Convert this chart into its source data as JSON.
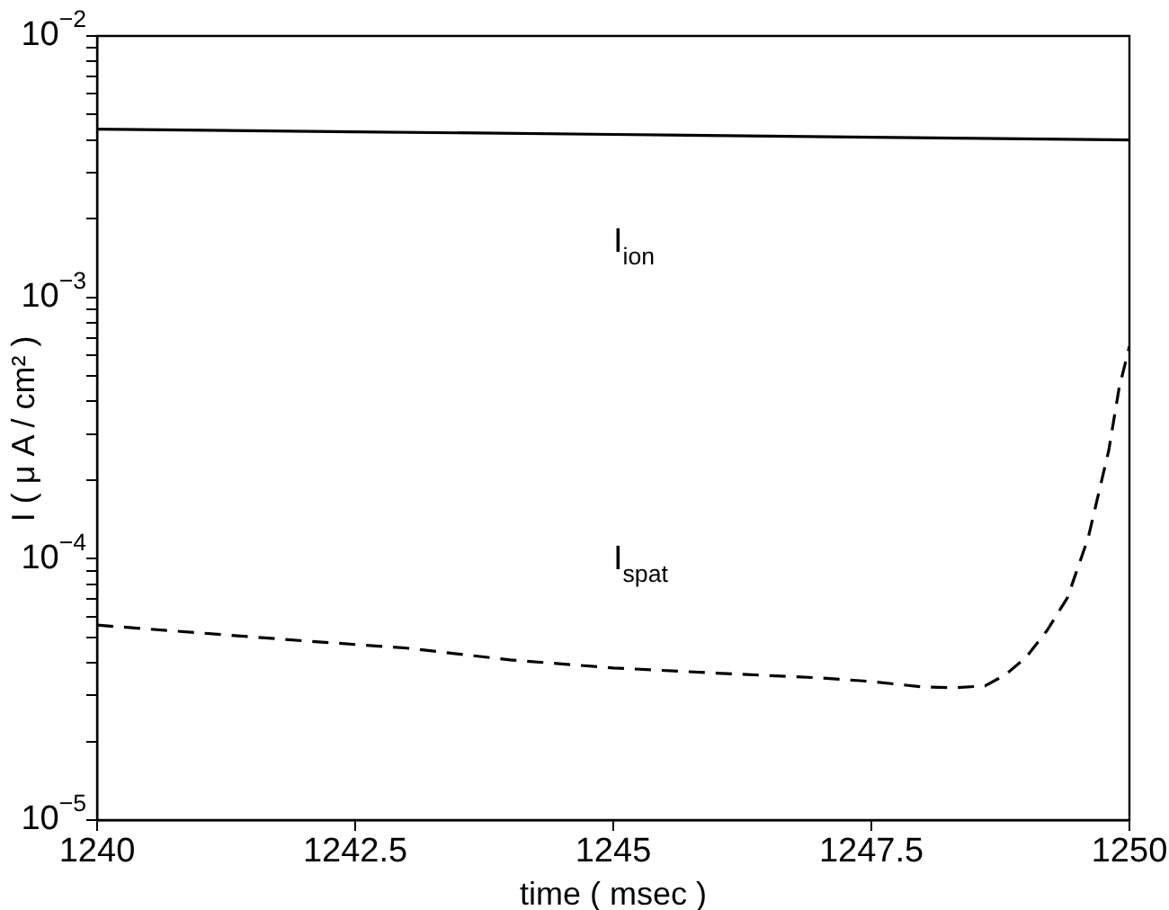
{
  "chart_data": {
    "type": "line",
    "xlabel": "time ( msec )",
    "ylabel": "I ( μ A / cm² )",
    "log": "y",
    "grid": false,
    "legend": false,
    "marker": "none",
    "xlim": [
      1240,
      1250
    ],
    "xticks": [
      1240,
      1242.5,
      1245,
      1247.5,
      1250
    ],
    "ylim": [
      1e-05,
      0.01
    ],
    "yticks": [
      {
        "value": 1e-05,
        "label": "10$^{−5}$"
      },
      {
        "value": 2e-05,
        "label": null
      },
      {
        "value": 3e-05,
        "label": null
      },
      {
        "value": 4e-05,
        "label": null
      },
      {
        "value": 5e-05,
        "label": null
      },
      {
        "value": 6e-05,
        "label": null
      },
      {
        "value": 7e-05,
        "label": null
      },
      {
        "value": 8e-05,
        "label": null
      },
      {
        "value": 9e-05,
        "label": null
      },
      {
        "value": 0.0001,
        "label": "10$^{−4}$"
      },
      {
        "value": 0.0002,
        "label": null
      },
      {
        "value": 0.0003,
        "label": null
      },
      {
        "value": 0.0004,
        "label": null
      },
      {
        "value": 0.0005,
        "label": null
      },
      {
        "value": 0.0006,
        "label": null
      },
      {
        "value": 0.0007,
        "label": null
      },
      {
        "value": 0.0008,
        "label": null
      },
      {
        "value": 0.0009,
        "label": null
      },
      {
        "value": 0.001,
        "label": "10$^{−3}$"
      },
      {
        "value": 0.002,
        "label": null
      },
      {
        "value": 0.003,
        "label": null
      },
      {
        "value": 0.004,
        "label": null
      },
      {
        "value": 0.005,
        "label": null
      },
      {
        "value": 0.006,
        "label": null
      },
      {
        "value": 0.007,
        "label": null
      },
      {
        "value": 0.008,
        "label": null
      },
      {
        "value": 0.009,
        "label": null
      },
      {
        "value": 0.01,
        "label": "10$^{−2}$"
      }
    ],
    "series": [
      {
        "name": "I$_{ion}$",
        "color": "#000000",
        "line_style": "solid",
        "x": [
          1240,
          1242.5,
          1245,
          1247.5,
          1250
        ],
        "values": [
          0.0044,
          0.0043,
          0.0042,
          0.0041,
          0.004
        ]
      },
      {
        "name": "I$_{spat}$",
        "color": "#000000",
        "line_style": "dashed",
        "x": [
          1240,
          1241,
          1242,
          1243,
          1244,
          1245,
          1246,
          1247,
          1247.5,
          1248,
          1248.3,
          1248.6,
          1248.8,
          1249,
          1249.2,
          1249.4,
          1249.6,
          1249.8,
          1249.9,
          1250
        ],
        "values": [
          5.57e-05,
          5.2e-05,
          4.85e-05,
          4.55e-05,
          4.1e-05,
          3.82e-05,
          3.65e-05,
          3.5e-05,
          3.39e-05,
          3.23e-05,
          3.21e-05,
          3.26e-05,
          3.6e-05,
          4.2e-05,
          5.3e-05,
          7.1e-05,
          0.00012,
          0.00026,
          0.00045,
          0.00065
        ]
      }
    ]
  }
}
